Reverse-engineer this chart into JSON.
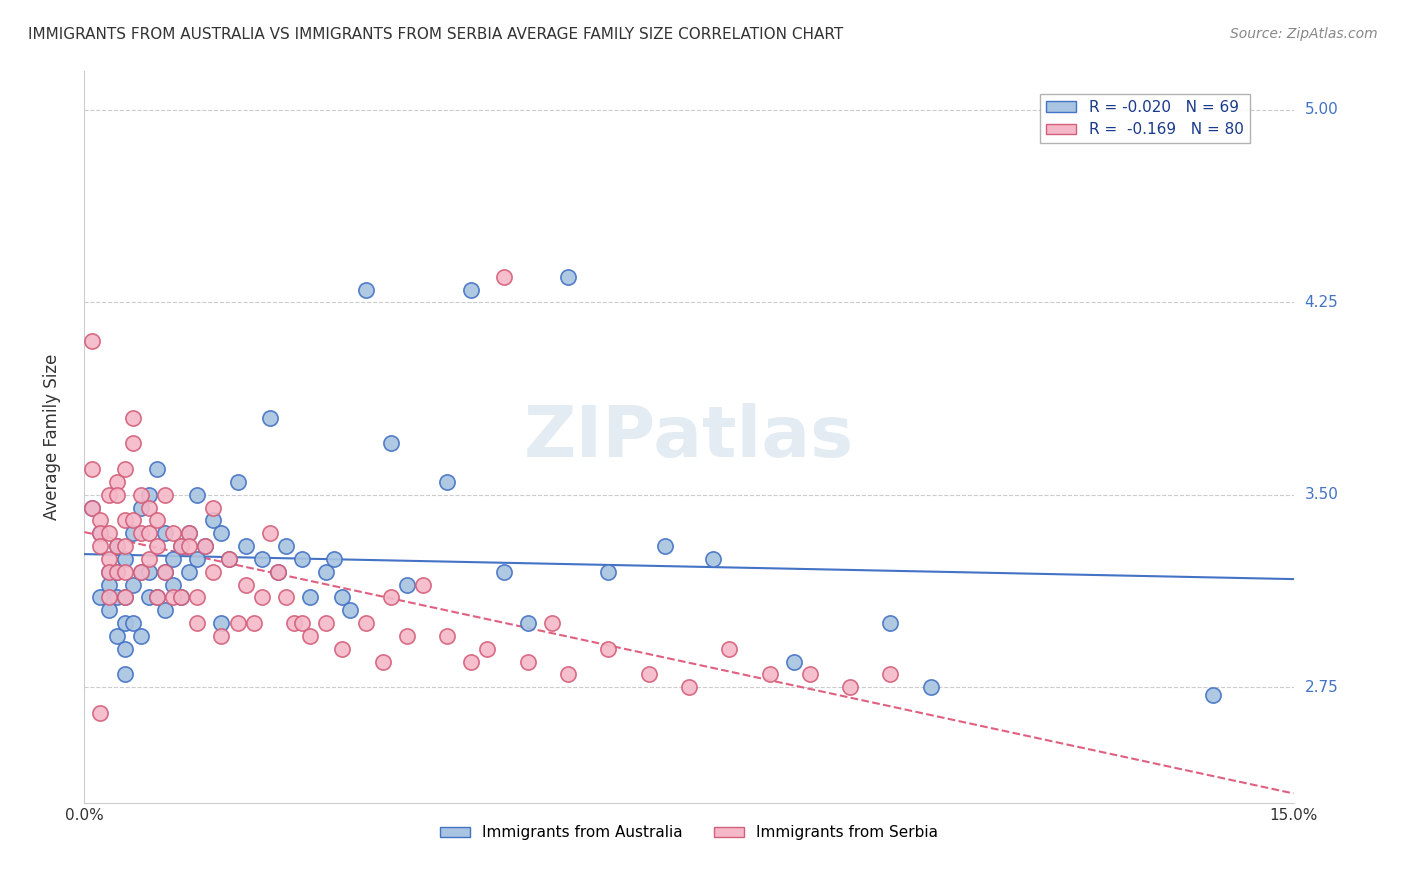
{
  "title": "IMMIGRANTS FROM AUSTRALIA VS IMMIGRANTS FROM SERBIA AVERAGE FAMILY SIZE CORRELATION CHART",
  "source": "Source: ZipAtlas.com",
  "ylabel": "Average Family Size",
  "xlim": [
    0.0,
    0.15
  ],
  "ylim": [
    2.3,
    5.15
  ],
  "yticks": [
    2.75,
    3.5,
    4.25,
    5.0
  ],
  "xticks": [
    0.0,
    0.05,
    0.1,
    0.15
  ],
  "xticklabels": [
    "0.0%",
    "",
    "",
    "15.0%"
  ],
  "right_ytick_color": "#4472c4",
  "background_color": "#ffffff",
  "grid_color": "#cccccc",
  "watermark": "ZIPatlas",
  "australia_color": "#a8c4e0",
  "australia_edge": "#4472c4",
  "serbia_color": "#f4b8c8",
  "serbia_edge": "#d45f7a",
  "legend_R_australia": "R = -0.020",
  "legend_N_australia": "N = 69",
  "legend_R_serbia": "R =  -0.169",
  "legend_N_serbia": "N = 80",
  "trend_australia_color": "#4472c4",
  "trend_serbia_color": "#e06080",
  "australia_x": [
    0.001,
    0.002,
    0.002,
    0.003,
    0.003,
    0.003,
    0.004,
    0.004,
    0.004,
    0.004,
    0.005,
    0.005,
    0.005,
    0.005,
    0.005,
    0.006,
    0.006,
    0.006,
    0.007,
    0.007,
    0.007,
    0.008,
    0.008,
    0.008,
    0.009,
    0.009,
    0.01,
    0.01,
    0.01,
    0.011,
    0.011,
    0.012,
    0.012,
    0.013,
    0.013,
    0.014,
    0.014,
    0.015,
    0.016,
    0.017,
    0.017,
    0.018,
    0.019,
    0.02,
    0.022,
    0.023,
    0.024,
    0.025,
    0.027,
    0.028,
    0.03,
    0.031,
    0.032,
    0.033,
    0.035,
    0.038,
    0.04,
    0.045,
    0.048,
    0.052,
    0.055,
    0.06,
    0.065,
    0.072,
    0.078,
    0.088,
    0.1,
    0.105,
    0.14
  ],
  "australia_y": [
    3.45,
    3.35,
    3.1,
    3.2,
    3.15,
    3.05,
    3.3,
    3.2,
    3.1,
    2.95,
    3.25,
    3.1,
    3.0,
    2.9,
    2.8,
    3.35,
    3.15,
    3.0,
    3.45,
    3.2,
    2.95,
    3.5,
    3.2,
    3.1,
    3.6,
    3.1,
    3.35,
    3.2,
    3.05,
    3.25,
    3.15,
    3.3,
    3.1,
    3.35,
    3.2,
    3.5,
    3.25,
    3.3,
    3.4,
    3.35,
    3.0,
    3.25,
    3.55,
    3.3,
    3.25,
    3.8,
    3.2,
    3.3,
    3.25,
    3.1,
    3.2,
    3.25,
    3.1,
    3.05,
    4.3,
    3.7,
    3.15,
    3.55,
    4.3,
    3.2,
    3.0,
    4.35,
    3.2,
    3.3,
    3.25,
    2.85,
    3.0,
    2.75,
    2.72
  ],
  "serbia_x": [
    0.001,
    0.001,
    0.001,
    0.002,
    0.002,
    0.002,
    0.002,
    0.003,
    0.003,
    0.003,
    0.003,
    0.003,
    0.004,
    0.004,
    0.004,
    0.004,
    0.005,
    0.005,
    0.005,
    0.005,
    0.005,
    0.006,
    0.006,
    0.006,
    0.007,
    0.007,
    0.007,
    0.008,
    0.008,
    0.008,
    0.009,
    0.009,
    0.009,
    0.01,
    0.01,
    0.011,
    0.011,
    0.012,
    0.012,
    0.013,
    0.013,
    0.014,
    0.014,
    0.015,
    0.016,
    0.016,
    0.017,
    0.018,
    0.019,
    0.02,
    0.021,
    0.022,
    0.023,
    0.024,
    0.025,
    0.026,
    0.027,
    0.028,
    0.03,
    0.032,
    0.035,
    0.037,
    0.038,
    0.04,
    0.042,
    0.045,
    0.048,
    0.05,
    0.052,
    0.055,
    0.058,
    0.06,
    0.065,
    0.07,
    0.075,
    0.08,
    0.085,
    0.09,
    0.095,
    0.1
  ],
  "serbia_y": [
    4.1,
    3.6,
    3.45,
    3.4,
    3.35,
    3.3,
    2.65,
    3.5,
    3.35,
    3.25,
    3.2,
    3.1,
    3.55,
    3.5,
    3.3,
    3.2,
    3.6,
    3.4,
    3.3,
    3.2,
    3.1,
    3.8,
    3.7,
    3.4,
    3.5,
    3.35,
    3.2,
    3.45,
    3.35,
    3.25,
    3.4,
    3.3,
    3.1,
    3.5,
    3.2,
    3.35,
    3.1,
    3.3,
    3.1,
    3.35,
    3.3,
    3.1,
    3.0,
    3.3,
    3.45,
    3.2,
    2.95,
    3.25,
    3.0,
    3.15,
    3.0,
    3.1,
    3.35,
    3.2,
    3.1,
    3.0,
    3.0,
    2.95,
    3.0,
    2.9,
    3.0,
    2.85,
    3.1,
    2.95,
    3.15,
    2.95,
    2.85,
    2.9,
    4.35,
    2.85,
    3.0,
    2.8,
    2.9,
    2.8,
    2.75,
    2.9,
    2.8,
    2.8,
    2.75,
    2.8
  ]
}
